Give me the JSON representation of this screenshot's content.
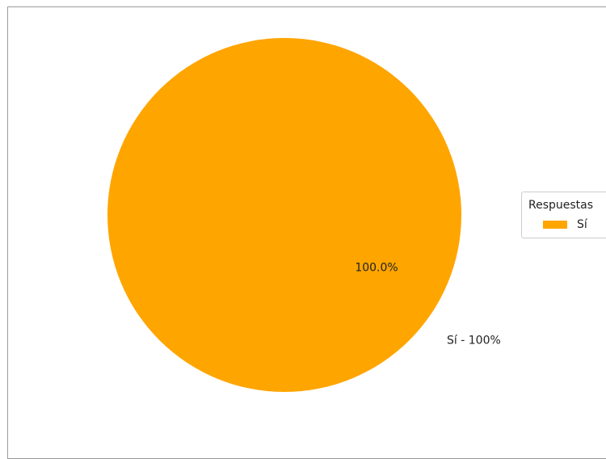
{
  "chart_data": {
    "type": "pie",
    "categories": [
      "Sí"
    ],
    "values": [
      100
    ],
    "colors": [
      "#FFA500"
    ],
    "autopct_labels": [
      "100.0%"
    ],
    "slice_labels": [
      "Sí - 100%"
    ],
    "legend": {
      "title": "Respuestas",
      "entries": [
        "Sí"
      ],
      "placement": "center-right"
    }
  }
}
